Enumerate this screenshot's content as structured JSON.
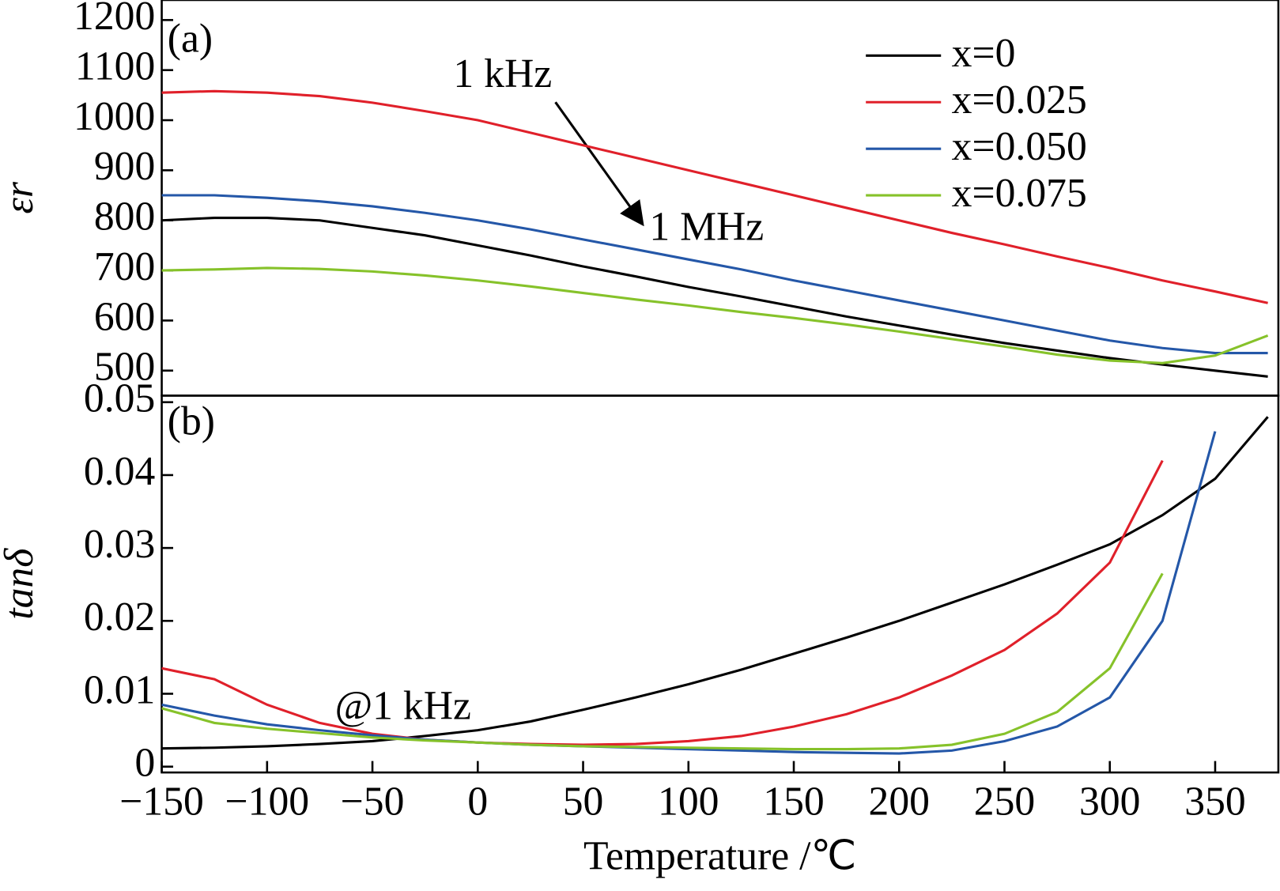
{
  "chart_data": [
    {
      "type": "line",
      "ylabel": "εr",
      "annotations": [
        "(a)",
        "1 kHz",
        "1 MHz"
      ],
      "x": [
        -150,
        -125,
        -100,
        -75,
        -50,
        -25,
        0,
        25,
        50,
        75,
        100,
        125,
        150,
        175,
        200,
        225,
        250,
        275,
        300,
        325,
        350,
        375
      ],
      "xlim": [
        -150,
        380
      ],
      "ylim": [
        450,
        1240
      ],
      "yticks": [
        500,
        600,
        700,
        800,
        900,
        1000,
        1100,
        1200
      ],
      "legend": "upper right",
      "series": [
        {
          "name": "x=0",
          "color": "#000000",
          "values": [
            800,
            805,
            805,
            800,
            785,
            770,
            750,
            730,
            708,
            688,
            667,
            648,
            628,
            608,
            590,
            572,
            555,
            540,
            525,
            512,
            500,
            488
          ]
        },
        {
          "name": "x=0.025",
          "color": "#e0202a",
          "values": [
            1055,
            1058,
            1055,
            1048,
            1035,
            1018,
            1000,
            975,
            950,
            925,
            900,
            875,
            850,
            825,
            800,
            775,
            752,
            728,
            705,
            680,
            658,
            635
          ]
        },
        {
          "name": "x=0.050",
          "color": "#2457a8",
          "values": [
            850,
            850,
            845,
            838,
            828,
            815,
            800,
            782,
            762,
            742,
            722,
            702,
            680,
            660,
            640,
            620,
            600,
            580,
            560,
            545,
            535,
            535
          ]
        },
        {
          "name": "x=0.075",
          "color": "#86c22a",
          "values": [
            700,
            702,
            705,
            703,
            698,
            690,
            680,
            668,
            655,
            642,
            630,
            617,
            605,
            592,
            578,
            563,
            548,
            532,
            520,
            515,
            530,
            570
          ]
        }
      ]
    },
    {
      "type": "line",
      "ylabel": "tanδ",
      "xlabel": "Temperature /℃",
      "annotations": [
        "(b)",
        "@1 kHz"
      ],
      "x": [
        -150,
        -125,
        -100,
        -75,
        -50,
        -25,
        0,
        25,
        50,
        75,
        100,
        125,
        150,
        175,
        200,
        225,
        250,
        275,
        300,
        325,
        350,
        375
      ],
      "xlim": [
        -150,
        380
      ],
      "ylim": [
        -0.0008,
        0.0509
      ],
      "yticks": [
        0,
        0.01,
        0.02,
        0.03,
        0.04,
        0.05
      ],
      "xticks": [
        {
          "value": -150,
          "label": "−150"
        },
        {
          "value": -100,
          "label": "−100"
        },
        {
          "value": -50,
          "label": "−50"
        },
        0,
        50,
        100,
        150,
        200,
        250,
        300,
        350
      ],
      "series": [
        {
          "name": "x=0",
          "color": "#000000",
          "values": [
            0.0025,
            0.0026,
            0.0028,
            0.0031,
            0.0035,
            0.0042,
            0.005,
            0.0062,
            0.0078,
            0.0095,
            0.0113,
            0.0133,
            0.0155,
            0.0177,
            0.02,
            0.0225,
            0.025,
            0.0277,
            0.0305,
            0.0345,
            0.0395,
            0.048
          ]
        },
        {
          "name": "x=0.025",
          "color": "#e0202a",
          "values": [
            0.0135,
            0.012,
            0.0085,
            0.006,
            0.0045,
            0.0037,
            0.0033,
            0.0031,
            0.003,
            0.0031,
            0.0035,
            0.0042,
            0.0055,
            0.0072,
            0.0095,
            0.0125,
            0.016,
            0.021,
            0.028,
            0.042,
            null,
            null
          ]
        },
        {
          "name": "x=0.050",
          "color": "#2457a8",
          "values": [
            0.0085,
            0.007,
            0.0058,
            0.005,
            0.0043,
            0.0037,
            0.0033,
            0.003,
            0.0028,
            0.0026,
            0.0024,
            0.0022,
            0.002,
            0.0019,
            0.0018,
            0.0022,
            0.0035,
            0.0055,
            0.0095,
            0.02,
            0.046,
            null
          ]
        },
        {
          "name": "x=0.075",
          "color": "#86c22a",
          "values": [
            0.008,
            0.006,
            0.0052,
            0.0046,
            0.004,
            0.0036,
            0.0033,
            0.003,
            0.0028,
            0.0027,
            0.0026,
            0.0025,
            0.0024,
            0.0024,
            0.0025,
            0.003,
            0.0045,
            0.0075,
            0.0135,
            0.0265,
            null,
            null
          ]
        }
      ]
    }
  ]
}
